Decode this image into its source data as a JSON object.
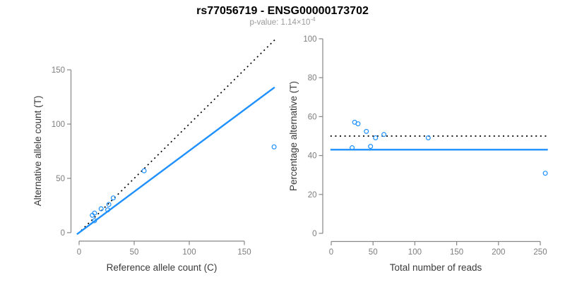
{
  "header": {
    "title": "rs77056719 - ENSG00000173702",
    "pvalue_prefix": "p-value: 1.14×10",
    "pvalue_exponent": "-4"
  },
  "colors": {
    "accent_blue": "#1e90ff",
    "dotted_black": "#000000",
    "axis_gray": "#878787",
    "tick_label_gray": "#7d7d7d",
    "axis_label_dark": "#3a3a3a",
    "point_blue": "#1e90ff"
  },
  "chart_data": [
    {
      "type": "scatter",
      "panel": "left",
      "xlabel": "Reference allele count (C)",
      "ylabel": "Alternative allele count (T)",
      "x_ticks": [
        0,
        50,
        100,
        150
      ],
      "y_ticks": [
        0,
        50,
        100,
        150
      ],
      "xlim": [
        -7,
        183
      ],
      "ylim": [
        -7,
        183
      ],
      "grid": false,
      "points": [
        [
          12,
          16
        ],
        [
          14,
          18
        ],
        [
          20,
          22
        ],
        [
          27,
          26
        ],
        [
          31,
          32
        ],
        [
          26,
          21
        ],
        [
          14,
          11
        ],
        [
          59,
          57
        ],
        [
          177,
          79
        ]
      ],
      "lines": [
        {
          "name": "identity-line",
          "style": "dotted",
          "color": "#000000",
          "x1": 2,
          "y1": 2,
          "x2": 179,
          "y2": 179
        },
        {
          "name": "fitted-line",
          "style": "solid",
          "color": "#1e90ff",
          "x1": -2,
          "y1": -1.5,
          "x2": 177.5,
          "y2": 133.9
        }
      ]
    },
    {
      "type": "scatter",
      "panel": "right",
      "xlabel": "Total number of reads",
      "ylabel": "Percentage alternative (T)",
      "x_ticks": [
        0,
        50,
        100,
        150,
        200,
        250
      ],
      "y_ticks": [
        0,
        20,
        40,
        60,
        80,
        100
      ],
      "xlim": [
        -10,
        268
      ],
      "ylim": [
        -5,
        105
      ],
      "grid": false,
      "points": [
        [
          28,
          57.1
        ],
        [
          32,
          56.3
        ],
        [
          42,
          52.4
        ],
        [
          53,
          49.1
        ],
        [
          63,
          50.8
        ],
        [
          47,
          44.7
        ],
        [
          25,
          44.0
        ],
        [
          116,
          49.1
        ],
        [
          256,
          30.9
        ]
      ],
      "lines": [
        {
          "name": "null-line",
          "style": "dotted",
          "color": "#000000",
          "x1": -1,
          "y1": 50,
          "x2": 259,
          "y2": 50
        },
        {
          "name": "fitted-line",
          "style": "solid",
          "color": "#1e90ff",
          "x1": -1,
          "y1": 43,
          "x2": 259,
          "y2": 43
        }
      ]
    }
  ]
}
